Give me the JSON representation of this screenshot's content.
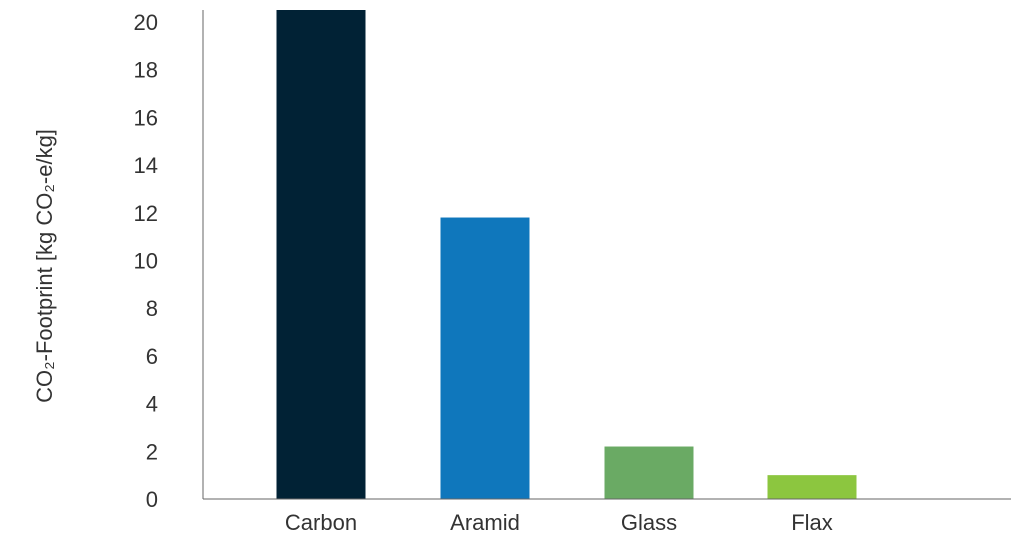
{
  "chart_data": {
    "type": "bar",
    "categories": [
      "Carbon",
      "Aramid",
      "Glass",
      "Flax"
    ],
    "values": [
      20.5,
      11.8,
      2.2,
      1.0
    ],
    "colors": [
      "#012235",
      "#0f77bc",
      "#6aaa64",
      "#8cc63f"
    ],
    "title": "",
    "xlabel": "",
    "ylabel": "CO₂-Footprint [kg CO₂-e/kg]",
    "ylim": [
      0,
      20.5
    ],
    "yticks": [
      0,
      2,
      4,
      6,
      8,
      10,
      12,
      14,
      16,
      18,
      20
    ],
    "grid": false,
    "legend": "none",
    "axis_color": "#666666"
  }
}
